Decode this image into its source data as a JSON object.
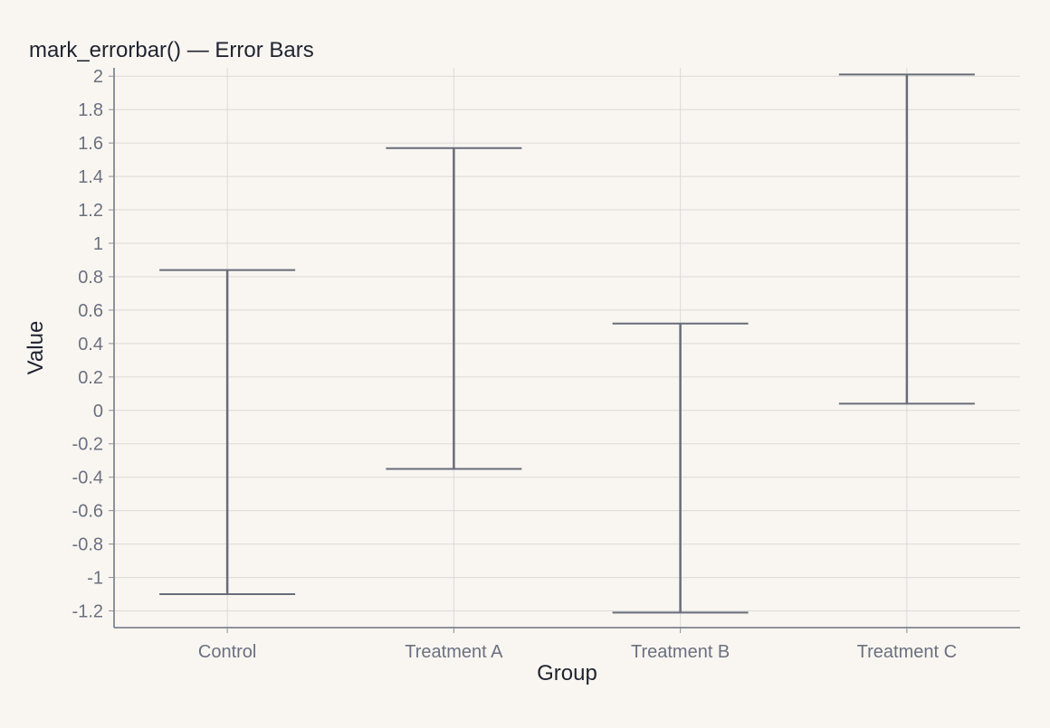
{
  "chart_data": {
    "type": "errorbar",
    "title": "mark_errorbar() — Error Bars",
    "xlabel": "Group",
    "ylabel": "Value",
    "categories": [
      "Control",
      "Treatment A",
      "Treatment B",
      "Treatment C"
    ],
    "lower": [
      -1.1,
      -0.35,
      -1.21,
      0.04
    ],
    "upper": [
      0.84,
      1.57,
      0.52,
      2.01
    ],
    "ylim": [
      -1.3,
      2.05
    ],
    "yticks": [
      2,
      1.8,
      1.6,
      1.4,
      1.2,
      1,
      0.8,
      0.6,
      0.4,
      0.2,
      0,
      -0.2,
      -0.4,
      -0.6,
      -0.8,
      -1,
      -1.2
    ],
    "grid": true,
    "colors": {
      "errorbar": "#686c7a",
      "grid": "#dcdad6",
      "background": "#f9f6f1"
    }
  }
}
